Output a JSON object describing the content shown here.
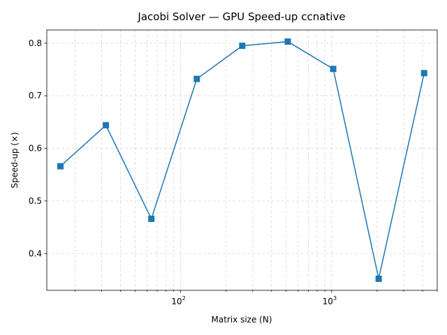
{
  "chart_data": {
    "type": "line",
    "title": "Jacobi Solver — GPU Speed-up ccnative",
    "xlabel": "Matrix size (N)",
    "ylabel": "Speed-up (×)",
    "xscale": "log",
    "xlim": [
      13,
      5000
    ],
    "ylim": [
      0.33,
      0.825
    ],
    "grid": true,
    "x_major_ticks": [
      {
        "value": 100,
        "base": "10",
        "exp": "2"
      },
      {
        "value": 1000,
        "base": "10",
        "exp": "3"
      }
    ],
    "y_ticks": [
      {
        "value": 0.4,
        "label": "0.4"
      },
      {
        "value": 0.5,
        "label": "0.5"
      },
      {
        "value": 0.6,
        "label": "0.6"
      },
      {
        "value": 0.7,
        "label": "0.7"
      },
      {
        "value": 0.8,
        "label": "0.8"
      }
    ],
    "series": [
      {
        "color": "#1f77b4",
        "marker": "square",
        "x": [
          16,
          32,
          64,
          128,
          256,
          512,
          1024,
          2048,
          4096
        ],
        "y": [
          0.566,
          0.644,
          0.466,
          0.732,
          0.795,
          0.803,
          0.751,
          0.352,
          0.743
        ]
      }
    ]
  }
}
